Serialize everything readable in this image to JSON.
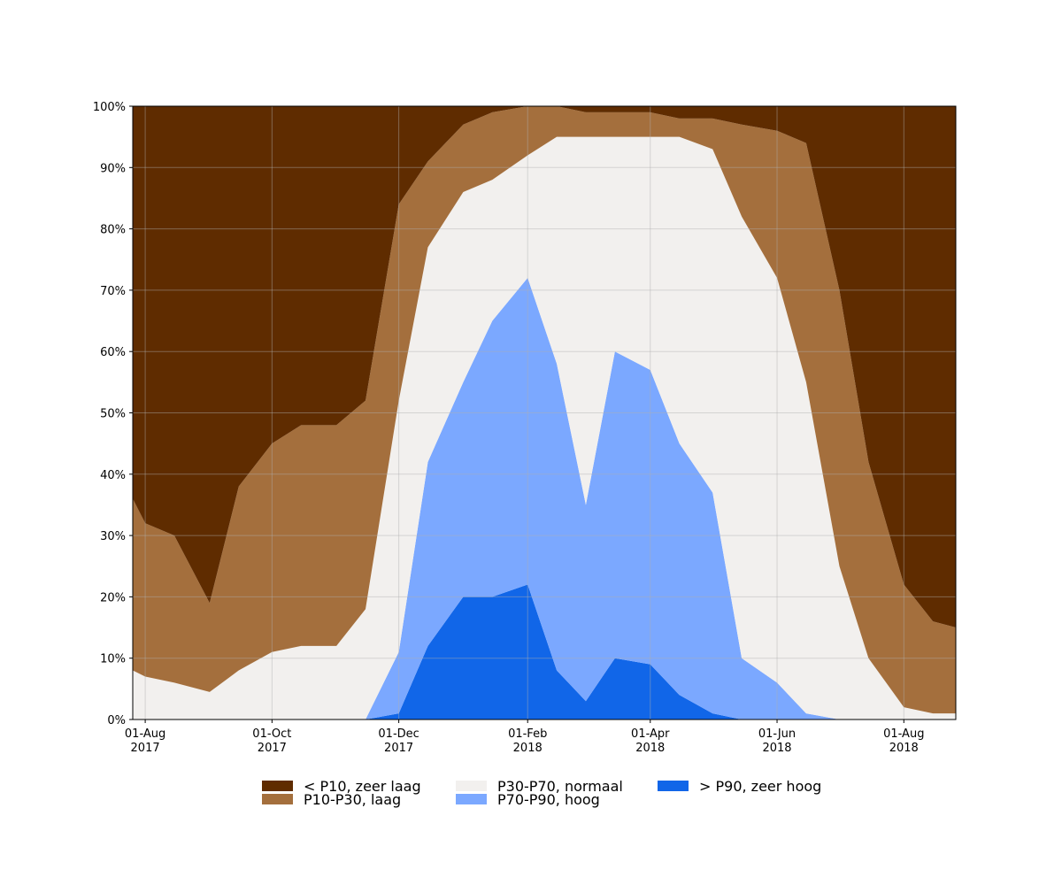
{
  "chart_data": {
    "type": "stacked_area",
    "x": [
      "2017-07-26",
      "2017-08-01",
      "2017-08-15",
      "2017-09-01",
      "2017-09-15",
      "2017-10-01",
      "2017-10-15",
      "2017-11-01",
      "2017-11-15",
      "2017-12-01",
      "2017-12-15",
      "2018-01-01",
      "2018-01-15",
      "2018-02-01",
      "2018-02-15",
      "2018-03-01",
      "2018-03-15",
      "2018-04-01",
      "2018-04-15",
      "2018-05-01",
      "2018-05-15",
      "2018-06-01",
      "2018-06-15",
      "2018-07-01",
      "2018-07-15",
      "2018-08-01",
      "2018-08-15",
      "2018-08-26"
    ],
    "series": [
      {
        "name": "< P10, zeer laag",
        "color": "#5f2c00",
        "values": [
          64,
          68,
          70,
          81,
          62,
          55,
          52,
          52,
          48,
          16,
          9,
          3,
          1,
          0,
          0,
          1,
          1,
          1,
          2,
          2,
          3,
          4,
          6,
          30,
          58,
          78,
          84,
          85
        ]
      },
      {
        "name": "P10-P30, laag",
        "color": "#a46f3d",
        "values": [
          28,
          25,
          24,
          14.5,
          30,
          34,
          36,
          36,
          34,
          32,
          14,
          11,
          11,
          8,
          5,
          4,
          4,
          4,
          3,
          5,
          15,
          24,
          39,
          45,
          32,
          20,
          15,
          14
        ]
      },
      {
        "name": "P30-P70, normaal",
        "color": "#f2f0ee",
        "values": [
          8,
          7,
          6,
          4.5,
          8,
          11,
          12,
          12,
          18,
          41,
          35,
          31,
          23,
          20,
          37,
          60,
          35,
          38,
          50,
          56,
          72,
          66,
          54,
          25,
          10,
          2,
          1,
          1
        ]
      },
      {
        "name": "P70-P90, hoog",
        "color": "#7ba8ff",
        "values": [
          0,
          0,
          0,
          0,
          0,
          0,
          0,
          0,
          0,
          10,
          30,
          35,
          45,
          50,
          50,
          32,
          50,
          48,
          41,
          36,
          10,
          6,
          1,
          0,
          0,
          0,
          0,
          0
        ]
      },
      {
        "name": "> P90, zeer hoog",
        "color": "#1166e8",
        "values": [
          0,
          0,
          0,
          0,
          0,
          0,
          0,
          0,
          0,
          1,
          12,
          20,
          20,
          22,
          8,
          3,
          10,
          9,
          4,
          1,
          0,
          0,
          0,
          0,
          0,
          0,
          0,
          0
        ]
      }
    ],
    "xlim": [
      "2017-07-26",
      "2018-08-26"
    ],
    "xticks": [
      {
        "value": "2017-08-01",
        "label": "01-Aug 2017"
      },
      {
        "value": "2017-10-01",
        "label": "01-Oct 2017"
      },
      {
        "value": "2017-12-01",
        "label": "01-Dec 2017"
      },
      {
        "value": "2018-02-01",
        "label": "01-Feb 2018"
      },
      {
        "value": "2018-04-01",
        "label": "01-Apr 2018"
      },
      {
        "value": "2018-06-01",
        "label": "01-Jun 2018"
      },
      {
        "value": "2018-08-01",
        "label": "01-Aug 2018"
      }
    ],
    "ylim": [
      0,
      100
    ],
    "yticks": [
      {
        "value": 0,
        "label": "0%"
      },
      {
        "value": 10,
        "label": "10%"
      },
      {
        "value": 20,
        "label": "20%"
      },
      {
        "value": 30,
        "label": "30%"
      },
      {
        "value": 40,
        "label": "40%"
      },
      {
        "value": 50,
        "label": "50%"
      },
      {
        "value": 60,
        "label": "60%"
      },
      {
        "value": 70,
        "label": "70%"
      },
      {
        "value": 80,
        "label": "80%"
      },
      {
        "value": 90,
        "label": "90%"
      },
      {
        "value": 100,
        "label": "100%"
      }
    ],
    "grid": true,
    "legend": "bottom"
  }
}
